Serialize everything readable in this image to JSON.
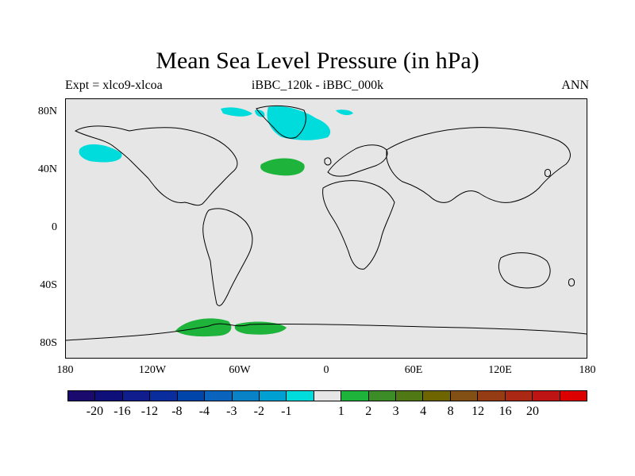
{
  "plot": {
    "title": "Mean Sea Level Pressure (in hPa)",
    "left_label": "Expt = xlco9-xlcoa",
    "center_label": "iBBC_120k - iBBC_000k",
    "right_label": "ANN"
  },
  "axes": {
    "y_ticks": [
      "80N",
      "40N",
      "0",
      "40S",
      "80S"
    ],
    "x_ticks": [
      "180",
      "120W",
      "60W",
      "0",
      "60E",
      "120E",
      "180"
    ]
  },
  "colorbar": {
    "colors": [
      "#1a0a6e",
      "#0f0f7a",
      "#0f1e8c",
      "#0a2d9e",
      "#0046aa",
      "#0a64be",
      "#0a82c8",
      "#00a0d2",
      "#00dcdc",
      "#e6e6e6",
      "#1eb43c",
      "#3c8c28",
      "#507814",
      "#6e6400",
      "#825014",
      "#963c14",
      "#aa2814",
      "#be1414",
      "#dc0000"
    ],
    "labels": [
      "-20",
      "-16",
      "-12",
      "-8",
      "-4",
      "-3",
      "-2",
      "-1",
      "1",
      "2",
      "3",
      "4",
      "8",
      "12",
      "16",
      "20"
    ]
  },
  "colors": {
    "background": "#e6e6e6",
    "positive_anomaly": "#1eb43c",
    "negative_anomaly": "#00dcdc"
  }
}
